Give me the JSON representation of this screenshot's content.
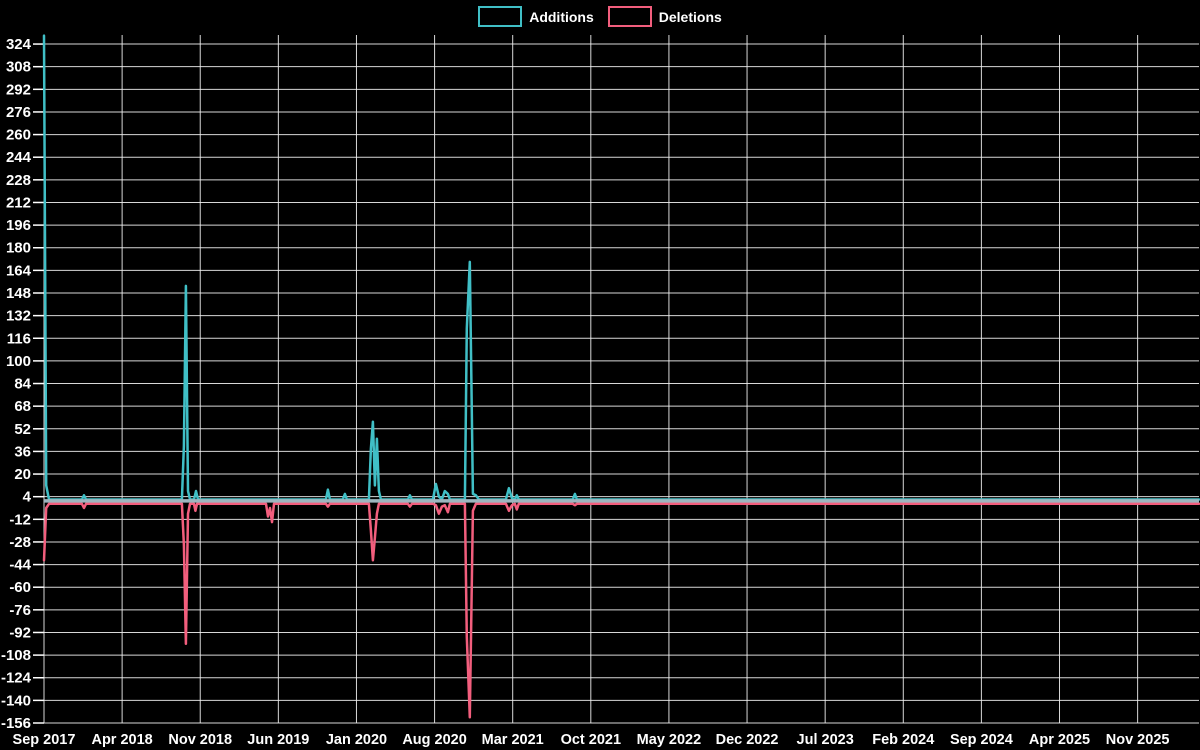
{
  "app": {
    "background": "#000000"
  },
  "legend": {
    "items": [
      {
        "label": "Additions",
        "color": "#40bfc6"
      },
      {
        "label": "Deletions",
        "color": "#f25e7d"
      }
    ]
  },
  "chart_data": {
    "type": "line",
    "title": "",
    "xlabel": "",
    "ylabel": "",
    "legend_position": "top-center",
    "grid": {
      "horizontal": true,
      "vertical": true,
      "color": "#f0f0f0"
    },
    "x_axis": {
      "tick_labels": [
        "Sep 2017",
        "Apr 2018",
        "Nov 2018",
        "Jun 2019",
        "Jan 2020",
        "Aug 2020",
        "Mar 2021",
        "Oct 2021",
        "May 2022",
        "Dec 2022",
        "Jul 2023",
        "Feb 2024",
        "Sep 2024",
        "Apr 2025",
        "Nov 2025"
      ],
      "tick_interval_months": 7,
      "x_unit": "months_since_Sep_2017",
      "range_months": [
        0,
        103.5
      ]
    },
    "y_axis": {
      "ticks": [
        324,
        308,
        292,
        276,
        260,
        244,
        228,
        212,
        196,
        180,
        164,
        148,
        132,
        116,
        100,
        84,
        68,
        52,
        36,
        20,
        4,
        -12,
        -28,
        -44,
        -60,
        -76,
        -92,
        -108,
        -124,
        -140,
        -156
      ],
      "min": -156,
      "max": 330.4
    },
    "baseline": {
      "value": 1,
      "color": "#9db6bf",
      "width": 3.5
    },
    "series": [
      {
        "name": "Additions",
        "color": "#40bfc6",
        "width": 2.5,
        "points": [
          [
            0,
            330
          ],
          [
            0.2,
            12
          ],
          [
            0.45,
            2
          ],
          [
            3.4,
            2
          ],
          [
            3.58,
            5
          ],
          [
            3.76,
            2
          ],
          [
            12.36,
            2
          ],
          [
            12.54,
            40
          ],
          [
            12.72,
            153
          ],
          [
            12.9,
            8
          ],
          [
            13.08,
            2
          ],
          [
            13.44,
            2
          ],
          [
            13.62,
            8
          ],
          [
            13.8,
            2
          ],
          [
            25.26,
            2
          ],
          [
            25.44,
            9
          ],
          [
            25.62,
            2
          ],
          [
            26.78,
            2
          ],
          [
            26.96,
            6
          ],
          [
            27.14,
            2
          ],
          [
            29.11,
            2
          ],
          [
            29.29,
            38
          ],
          [
            29.47,
            57
          ],
          [
            29.65,
            12
          ],
          [
            29.83,
            45
          ],
          [
            30.01,
            8
          ],
          [
            30.19,
            2
          ],
          [
            32.61,
            2
          ],
          [
            32.79,
            5
          ],
          [
            32.97,
            2
          ],
          [
            34.85,
            2
          ],
          [
            35.12,
            13
          ],
          [
            35.39,
            4
          ],
          [
            35.66,
            2
          ],
          [
            35.92,
            8
          ],
          [
            36.19,
            6
          ],
          [
            36.37,
            2
          ],
          [
            37.72,
            2
          ],
          [
            37.89,
            123
          ],
          [
            38.16,
            170
          ],
          [
            38.43,
            6
          ],
          [
            38.7,
            5
          ],
          [
            38.97,
            2
          ],
          [
            41.39,
            2
          ],
          [
            41.66,
            10
          ],
          [
            41.93,
            3
          ],
          [
            42.19,
            2
          ],
          [
            42.37,
            5
          ],
          [
            42.55,
            2
          ],
          [
            47.39,
            2
          ],
          [
            47.57,
            6
          ],
          [
            47.75,
            2
          ],
          [
            103.5,
            2
          ]
        ]
      },
      {
        "name": "Deletions",
        "color": "#f25e7d",
        "width": 2.5,
        "points": [
          [
            0,
            -41
          ],
          [
            0.2,
            -4
          ],
          [
            0.45,
            -1
          ],
          [
            3.4,
            -1
          ],
          [
            3.58,
            -4
          ],
          [
            3.76,
            -1
          ],
          [
            12.36,
            -1
          ],
          [
            12.54,
            -30
          ],
          [
            12.72,
            -100
          ],
          [
            12.9,
            -8
          ],
          [
            13.08,
            -1
          ],
          [
            13.44,
            -1
          ],
          [
            13.57,
            -6
          ],
          [
            13.71,
            -1
          ],
          [
            19.89,
            -1
          ],
          [
            20.07,
            -10
          ],
          [
            20.25,
            -4
          ],
          [
            20.43,
            -14
          ],
          [
            20.61,
            -1
          ],
          [
            25.26,
            -1
          ],
          [
            25.44,
            -3
          ],
          [
            25.62,
            -1
          ],
          [
            29.11,
            -1
          ],
          [
            29.29,
            -20
          ],
          [
            29.47,
            -41
          ],
          [
            29.65,
            -25
          ],
          [
            29.83,
            -8
          ],
          [
            30.01,
            -1
          ],
          [
            32.61,
            -1
          ],
          [
            32.79,
            -3
          ],
          [
            32.97,
            -1
          ],
          [
            34.85,
            -1
          ],
          [
            35.12,
            -2
          ],
          [
            35.39,
            -8
          ],
          [
            35.66,
            -3
          ],
          [
            35.92,
            -2
          ],
          [
            36.19,
            -7
          ],
          [
            36.37,
            -1
          ],
          [
            37.72,
            -1
          ],
          [
            37.89,
            -95
          ],
          [
            38.16,
            -152
          ],
          [
            38.43,
            -6
          ],
          [
            38.7,
            -1
          ],
          [
            41.39,
            -1
          ],
          [
            41.66,
            -6
          ],
          [
            41.93,
            -2
          ],
          [
            42.19,
            -1
          ],
          [
            42.37,
            -5
          ],
          [
            42.55,
            -1
          ],
          [
            47.39,
            -1
          ],
          [
            47.57,
            -2
          ],
          [
            47.75,
            -1
          ],
          [
            103.5,
            -1
          ]
        ]
      }
    ]
  }
}
